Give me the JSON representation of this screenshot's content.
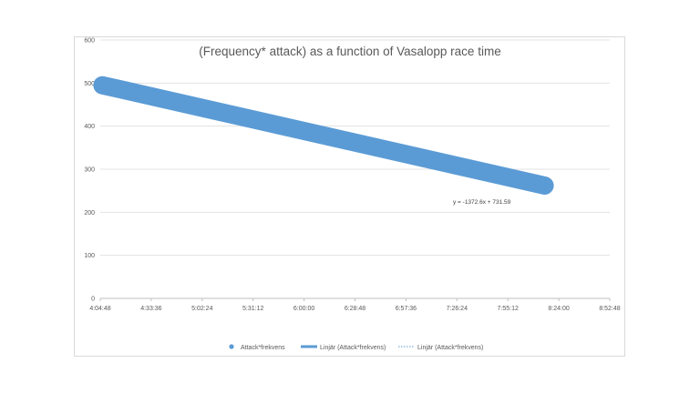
{
  "chart_data": {
    "type": "line",
    "title": "(Frequency* attack) as a function of  Vasalopp race time",
    "xlabel": "",
    "ylabel": "",
    "xlim": [
      "4:04:48",
      "8:52:48"
    ],
    "ylim": [
      0,
      600
    ],
    "x_tick_labels": [
      "4:04:48",
      "4:33:36",
      "5:02:24",
      "5:31:12",
      "6:00:00",
      "6:28:48",
      "6:57:36",
      "7:26:24",
      "7:55:12",
      "8:24:00",
      "8:52:48"
    ],
    "y_tick_labels": [
      "0",
      "100",
      "200",
      "300",
      "400",
      "500",
      "600"
    ],
    "grid": true,
    "series": [
      {
        "name": "Attack*frekvens",
        "color": "#5b9bd5",
        "x": [
          "4:06:00",
          "8:16:00"
        ],
        "y": [
          495,
          262
        ]
      }
    ],
    "trendline_equation": "y = -1372.6x + 731.59",
    "legend": {
      "position": "bottom",
      "items": [
        "Attack*frekvens",
        "Linjär (Attack*frekvens)",
        "Linjär (Attack*frekvens)"
      ]
    }
  }
}
